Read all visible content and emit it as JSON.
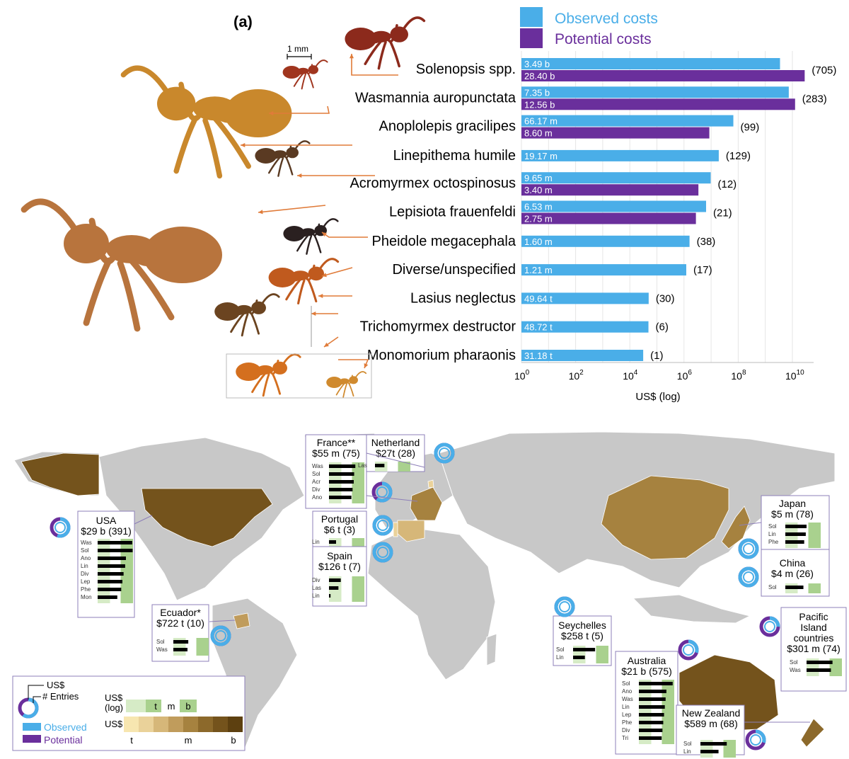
{
  "panel_label": "(a)",
  "scale_bar_label": "1 mm",
  "colors": {
    "observed": "#4aaee8",
    "potential": "#6a2f9c",
    "land": "#c8c8c8",
    "border": "#ffffff",
    "arrow": "#e07b39",
    "inset_bg": "#a9d18e",
    "inset_bg_light": "#d6ebc6",
    "box_border": "#8d7fb8"
  },
  "chart_data": [
    {
      "type": "bar",
      "orientation": "horizontal",
      "log_scale": true,
      "xlabel": "US$ (log)",
      "xlim": [
        1,
        100000000000
      ],
      "x_ticks": [
        {
          "base": "10",
          "exp": "0"
        },
        {
          "base": "10",
          "exp": "2"
        },
        {
          "base": "10",
          "exp": "4"
        },
        {
          "base": "10",
          "exp": "6"
        },
        {
          "base": "10",
          "exp": "8"
        },
        {
          "base": "10",
          "exp": "10"
        }
      ],
      "grid": true,
      "legend": {
        "placement": "top",
        "items": [
          "Observed costs",
          "Potential costs"
        ]
      },
      "rows": [
        {
          "species": "Solenopsis spp.",
          "entries": "(705)",
          "observed": 3490000000,
          "observed_label": "3.49 b",
          "potential": 28400000000,
          "potential_label": "28.40 b"
        },
        {
          "species": "Wasmannia auropunctata",
          "entries": "(283)",
          "observed": 7350000000,
          "observed_label": "7.35 b",
          "potential": 12560000000,
          "potential_label": "12.56 b"
        },
        {
          "species": "Anoplolepis gracilipes",
          "entries": "(99)",
          "observed": 66170000,
          "observed_label": "66.17 m",
          "potential": 8600000,
          "potential_label": "8.60 m"
        },
        {
          "species": "Linepithema humile",
          "entries": "(129)",
          "observed": 19170000,
          "observed_label": "19.17 m",
          "potential": null,
          "potential_label": ""
        },
        {
          "species": "Acromyrmex octospinosus",
          "entries": "(12)",
          "observed": 9650000,
          "observed_label": "9.65 m",
          "potential": 3400000,
          "potential_label": "3.40 m"
        },
        {
          "species": "Lepisiota frauenfeldi",
          "entries": "(21)",
          "observed": 6530000,
          "observed_label": "6.53 m",
          "potential": 2750000,
          "potential_label": "2.75 m"
        },
        {
          "species": "Pheidole megacephala",
          "entries": "(38)",
          "observed": 1600000,
          "observed_label": "1.60 m",
          "potential": null,
          "potential_label": ""
        },
        {
          "species": "Diverse/unspecified",
          "entries": "(17)",
          "observed": 1210000,
          "observed_label": "1.21 m",
          "potential": null,
          "potential_label": ""
        },
        {
          "species": "Lasius neglectus",
          "entries": "(30)",
          "observed": 49640,
          "observed_label": "49.64 t",
          "potential": null,
          "potential_label": ""
        },
        {
          "species": "Trichomyrmex destructor",
          "entries": "(6)",
          "observed": 48720,
          "observed_label": "48.72 t",
          "potential": null,
          "potential_label": ""
        },
        {
          "species": "Monomorium pharaonis",
          "entries": "(1)",
          "observed": 31180,
          "observed_label": "31.18 t",
          "potential": null,
          "potential_label": ""
        }
      ]
    },
    {
      "type": "map",
      "countries": [
        {
          "name": "USA",
          "total": "$29 b (391)",
          "species": [
            "Was",
            "Sol",
            "Ano",
            "Lin",
            "Div",
            "Lep",
            "Phe",
            "Mon"
          ],
          "log_values": [
            10.8,
            10.9,
            9.2,
            9.0,
            8.6,
            8.3,
            8.0,
            7.0
          ],
          "observed_share": 0.55
        },
        {
          "name": "France**",
          "total": "$55 m (75)",
          "species": [
            "Was",
            "Sol",
            "Acr",
            "Div",
            "Ano"
          ],
          "log_values": [
            8.7,
            8.4,
            8.3,
            8.0,
            7.7
          ],
          "observed_share": 0.6
        },
        {
          "name": "Netherland",
          "total": "$27t (28)",
          "species": [
            "Las"
          ],
          "log_values": [
            4.4
          ],
          "observed_share": 1.0
        },
        {
          "name": "Portugal",
          "total": "$6 t (3)",
          "species": [
            "Lin"
          ],
          "log_values": [
            3.8
          ],
          "observed_share": 1.0
        },
        {
          "name": "Spain",
          "total": "$126 t (7)",
          "species": [
            "Div",
            "Las",
            "Lin"
          ],
          "log_values": [
            5.0,
            4.4,
            2.4
          ],
          "observed_share": 1.0
        },
        {
          "name": "Ecuador*",
          "total": "$722 t (10)",
          "species": [
            "Sol",
            "Was"
          ],
          "log_values": [
            5.8,
            5.6
          ],
          "observed_share": 1.0
        },
        {
          "name": "Japan",
          "total": "$5 m (78)",
          "species": [
            "Sol",
            "Lin",
            "Phe"
          ],
          "log_values": [
            7.4,
            7.2,
            6.8
          ],
          "observed_share": 1.0
        },
        {
          "name": "China",
          "total": "$4 m (26)",
          "species": [
            "Sol"
          ],
          "log_values": [
            6.6
          ],
          "observed_share": 1.0
        },
        {
          "name": "Seychelles",
          "total": "$258 t (5)",
          "species": [
            "Sol",
            "Lin"
          ],
          "log_values": [
            7.6,
            5.0
          ],
          "observed_share": 1.0
        },
        {
          "name": "Australia",
          "total": "$21 b (575)",
          "species": [
            "Sol",
            "Ano",
            "Was",
            "Lin",
            "Lep",
            "Phe",
            "Div",
            "Tri"
          ],
          "log_values": [
            10.6,
            9.0,
            8.8,
            8.6,
            8.4,
            8.2,
            8.0,
            7.8
          ],
          "observed_share": 0.3
        },
        {
          "name": "New Zealand",
          "total": "$589 m (68)",
          "species": [
            "Sol",
            "Lin"
          ],
          "log_values": [
            8.7,
            6.6
          ],
          "observed_share": 0.3
        },
        {
          "name": "Pacific Island countries",
          "total": "$301 m (74)",
          "species": [
            "Sol",
            "Was"
          ],
          "log_values": [
            8.6,
            8.2
          ],
          "observed_share": 0.25
        }
      ],
      "legend": {
        "donut_labels": [
          "US$",
          "# Entries"
        ],
        "donut_legend": [
          "Observed",
          "Potential"
        ],
        "log_scale_title": "US$ (log)",
        "log_scale_ticks": [
          "t",
          "m",
          "b"
        ],
        "color_scale_title": "US$",
        "color_scale_ticks": [
          "t",
          "m",
          "b"
        ],
        "color_scale": [
          "#f7e6b0",
          "#ead29a",
          "#d6b779",
          "#c09c5c",
          "#a6823f",
          "#8c692b",
          "#74531c",
          "#5d4010"
        ]
      }
    }
  ]
}
